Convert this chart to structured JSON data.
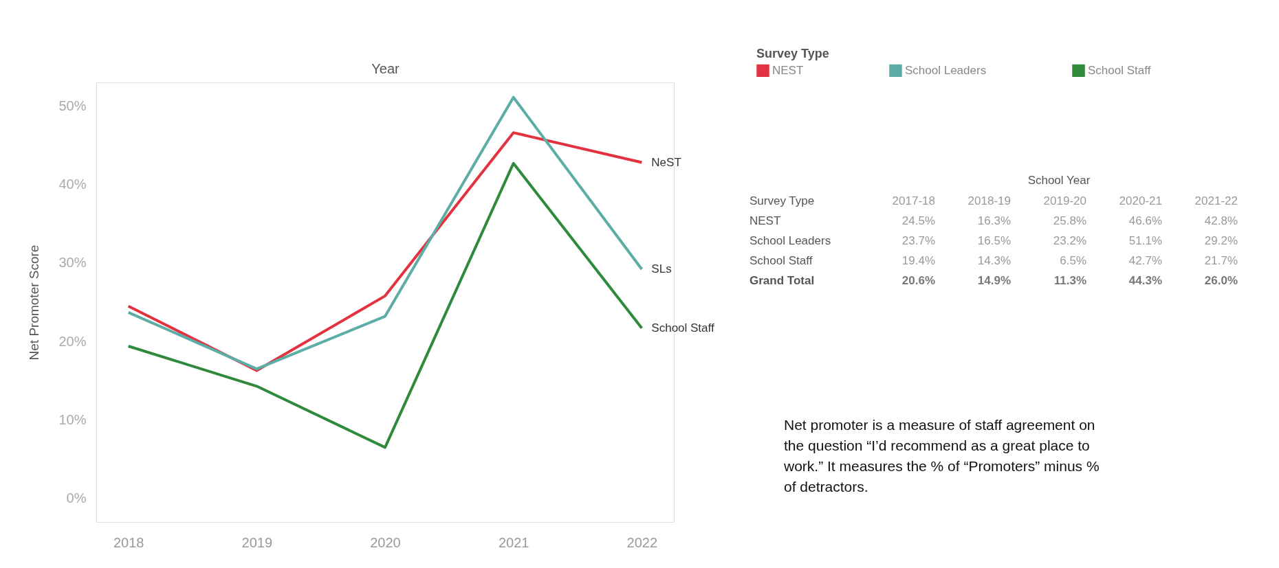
{
  "chart_data": {
    "type": "line",
    "xlabel": "Year",
    "ylabel": "Net Promoter Score",
    "legend_title": "Survey Type",
    "legend": "top right",
    "categories": [
      "2018",
      "2019",
      "2020",
      "2021",
      "2022"
    ],
    "ylim": [
      -3,
      53
    ],
    "yticks": [
      {
        "value": 0,
        "label": "0%"
      },
      {
        "value": 10,
        "label": "10%"
      },
      {
        "value": 20,
        "label": "20%"
      },
      {
        "value": 30,
        "label": "30%"
      },
      {
        "value": 40,
        "label": "40%"
      },
      {
        "value": 50,
        "label": "50%"
      }
    ],
    "series": [
      {
        "name": "NEST",
        "color": "#e2323f",
        "values": [
          24.5,
          16.3,
          25.8,
          46.6,
          42.8
        ]
      },
      {
        "name": "School Leaders",
        "color": "#5bada6",
        "values": [
          23.7,
          16.5,
          23.2,
          51.1,
          29.2
        ]
      },
      {
        "name": "School Staff",
        "color": "#2f8a3c",
        "values": [
          19.4,
          14.3,
          6.5,
          42.7,
          21.7
        ]
      }
    ],
    "annotations": [
      "School Year",
      "Survey Type",
      "2017-18",
      "2018-19",
      "2019-20",
      "2020-21",
      "2021-22",
      "24.5%",
      "16.3%",
      "25.8%",
      "46.6%",
      "42.8%",
      "23.7%",
      "16.5%",
      "23.2%",
      "51.1%",
      "29.2%",
      "19.4%",
      "14.3%",
      "6.5%",
      "42.7%",
      "21.7%",
      "Grand Total",
      "20.6%",
      "14.9%",
      "11.3%",
      "44.3%",
      "26.0%",
      {
        "text": "NeST",
        "x": "2022",
        "y": 42.8
      },
      {
        "text": "SLs",
        "x": "2022",
        "y": 29.2
      },
      {
        "text": "School Staff",
        "x": "2022",
        "y": 21.7
      },
      "Net promoter is a measure of staff agreement on the question “I’d recommend as a great place to work.” It measures the % of “Promoters” minus % of detractors."
    ]
  }
}
